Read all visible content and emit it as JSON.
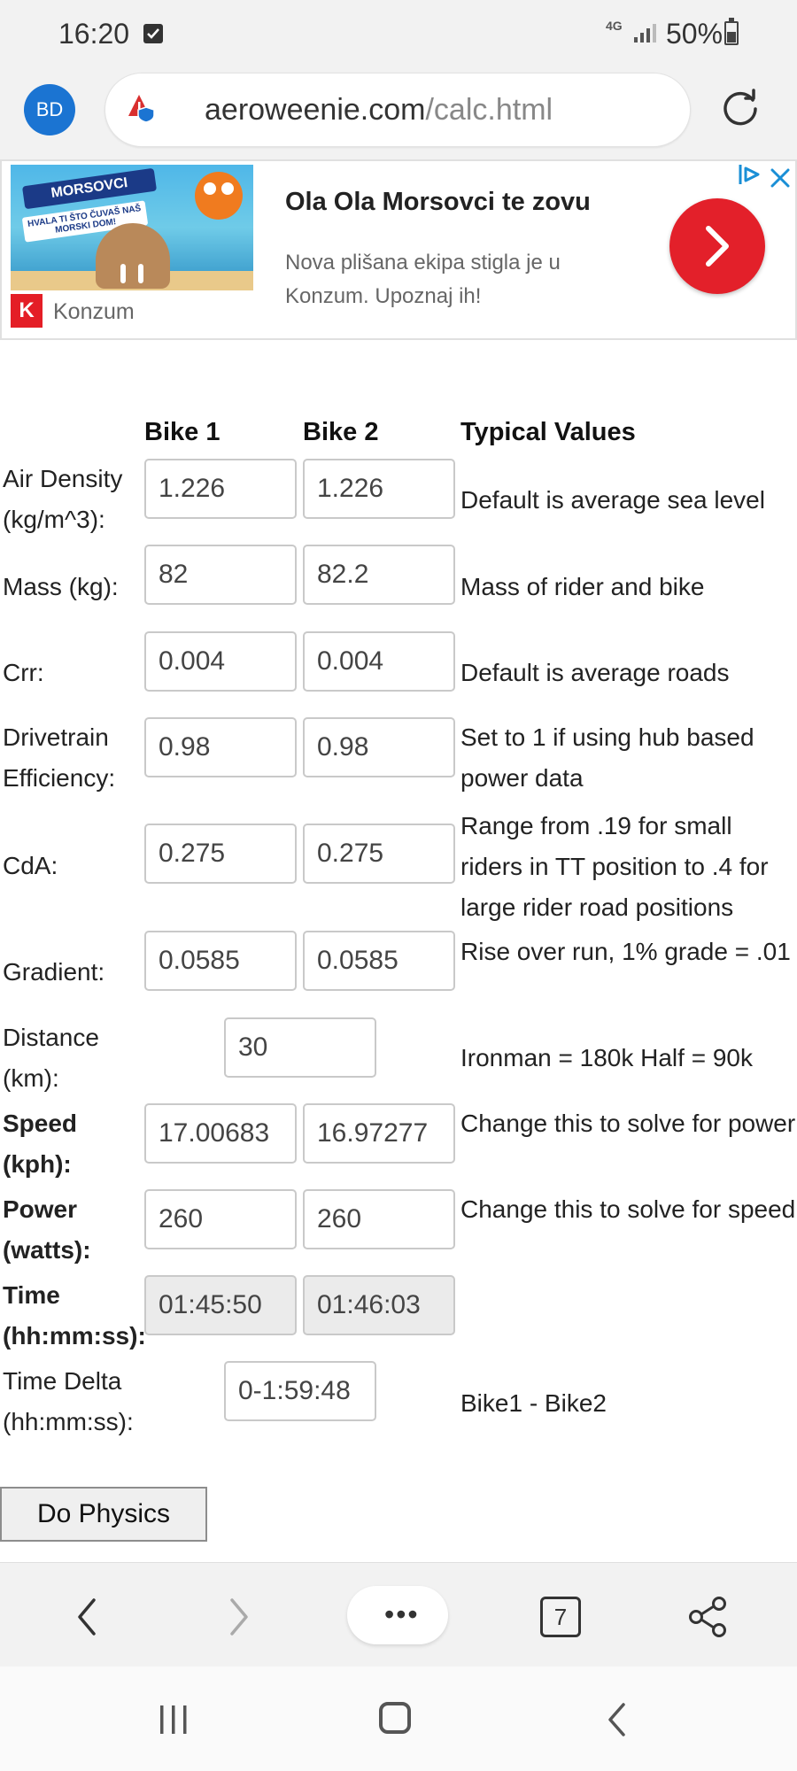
{
  "status_bar": {
    "time": "16:20",
    "network": "4G",
    "battery": "50%"
  },
  "url_bar": {
    "avatar": "BD",
    "domain": "aeroweenie.com",
    "path": "/calc.html"
  },
  "ad": {
    "image_banner": "MORSOVCI",
    "image_tag": "HVALA TI ŠTO ČUVAŠ NAŠ MORSKI DOM!",
    "brand_logo": "K",
    "brand": "Konzum",
    "title": "Ola Ola Morsovci te zovu",
    "description": "Nova plišana ekipa stigla je u Konzum. Upoznaj ih!",
    "accent_color": "#e3202a"
  },
  "calculator": {
    "headers": {
      "bike1": "Bike 1",
      "bike2": "Bike 2",
      "typical": "Typical Values"
    },
    "rows": [
      {
        "label": "Air Density (kg/m^3):",
        "bike1": "1.226",
        "bike2": "1.226",
        "typical": "Default is average sea level"
      },
      {
        "label": "Mass (kg):",
        "bike1": "82",
        "bike2": "82.2",
        "typical": "Mass of rider and bike"
      },
      {
        "label": "Crr:",
        "bike1": "0.004",
        "bike2": "0.004",
        "typical": "Default is average roads"
      },
      {
        "label": "Drivetrain Efficiency:",
        "bike1": "0.98",
        "bike2": "0.98",
        "typical": "Set to 1 if using hub based power data"
      },
      {
        "label": "CdA:",
        "bike1": "0.275",
        "bike2": "0.275",
        "typical": "Range from .19 for small riders in TT position to .4 for large rider road positions"
      },
      {
        "label": "Gradient:",
        "bike1": "0.0585",
        "bike2": "0.0585",
        "typical": "Rise over run, 1% grade = .01"
      },
      {
        "label": "Distance (km):",
        "shared": "30",
        "typical": "Ironman = 180k Half = 90k"
      },
      {
        "label": "Speed (kph):",
        "bike1": "17.00683",
        "bike2": "16.97277",
        "typical": "Change this to solve for power"
      },
      {
        "label": "Power (watts):",
        "bike1": "260",
        "bike2": "260",
        "typical": "Change this to solve for speed"
      },
      {
        "label": "Time (hh:mm:ss):",
        "bike1": "01:45:50",
        "bike2": "01:46:03",
        "typical": ""
      },
      {
        "label": "Time Delta (hh:mm:ss):",
        "shared": "0-1:59:48",
        "typical": "Bike1 - Bike2"
      }
    ],
    "button": "Do Physics"
  },
  "toolbar": {
    "tab_count": "7",
    "menu_glyph": "•••"
  }
}
